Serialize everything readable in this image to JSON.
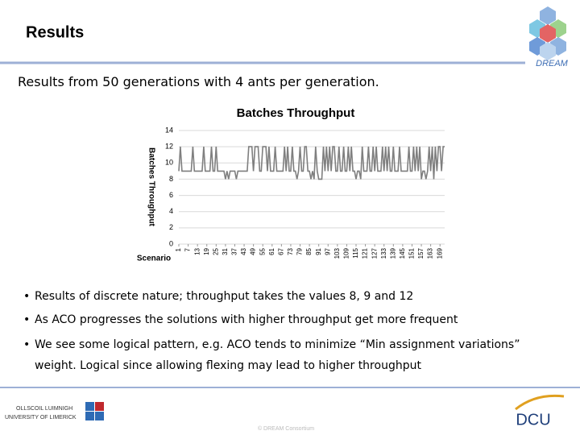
{
  "header": {
    "title": "Results",
    "logo_text": "DREAM"
  },
  "subtitle": "Results from 50 generations with 4 ants per generation.",
  "chart_data": {
    "type": "line",
    "title": "Batches Throughput",
    "x_label": "Scenario",
    "y_label": "Batches Throughput",
    "x": [
      1,
      2,
      3,
      4,
      5,
      6,
      7,
      8,
      9,
      10,
      11,
      12,
      13,
      14,
      15,
      16,
      17,
      18,
      19,
      20,
      21,
      22,
      23,
      24,
      25,
      26,
      27,
      28,
      29,
      30,
      31,
      32,
      33,
      34,
      35,
      36,
      37,
      38,
      39,
      40,
      41,
      42,
      43,
      44,
      45,
      46,
      47,
      48,
      49,
      50,
      51,
      52,
      53,
      54,
      55,
      56,
      57,
      58,
      59,
      60,
      61,
      62,
      63,
      64,
      65,
      66,
      67,
      68,
      69,
      70,
      71,
      72,
      73,
      74,
      75,
      76,
      77,
      78,
      79,
      80,
      81,
      82,
      83,
      84,
      85,
      86,
      87,
      88,
      89,
      90,
      91,
      92,
      93,
      94,
      95,
      96,
      97,
      98,
      99,
      100,
      101,
      102,
      103,
      104,
      105,
      106,
      107,
      108,
      109,
      110,
      111,
      112,
      113,
      114,
      115,
      116,
      117,
      118,
      119,
      120,
      121,
      122,
      123,
      124,
      125,
      126,
      127,
      128,
      129,
      130,
      131,
      132,
      133,
      134,
      135,
      136,
      137,
      138,
      139,
      140,
      141,
      142,
      143,
      144,
      145,
      146,
      147,
      148,
      149,
      150,
      151,
      152,
      153,
      154,
      155,
      156,
      157,
      158,
      159,
      160,
      161,
      162,
      163,
      164,
      165,
      166,
      167,
      168,
      169,
      170,
      171,
      172
    ],
    "series": [
      {
        "name": "Batches Throughput",
        "color": "#7f7f7f",
        "values": [
          9,
          12,
          9,
          9,
          9,
          9,
          9,
          9,
          9,
          12,
          9,
          9,
          9,
          9,
          9,
          9,
          12,
          9,
          9,
          9,
          9,
          12,
          9,
          9,
          12,
          9,
          9,
          9,
          9,
          9,
          8,
          9,
          8,
          9,
          9,
          9,
          9,
          8,
          9,
          9,
          9,
          9,
          9,
          9,
          9,
          12,
          12,
          12,
          9,
          12,
          12,
          12,
          9,
          9,
          12,
          12,
          12,
          9,
          12,
          9,
          9,
          9,
          12,
          9,
          9,
          9,
          9,
          9,
          12,
          9,
          12,
          9,
          9,
          12,
          9,
          9,
          8,
          9,
          12,
          9,
          9,
          12,
          12,
          9,
          9,
          8,
          9,
          8,
          12,
          9,
          8,
          8,
          8,
          12,
          9,
          12,
          9,
          12,
          9,
          12,
          12,
          9,
          9,
          12,
          9,
          9,
          12,
          9,
          9,
          12,
          9,
          12,
          9,
          9,
          8,
          9,
          9,
          8,
          12,
          9,
          9,
          9,
          12,
          9,
          9,
          12,
          9,
          12,
          9,
          9,
          9,
          12,
          9,
          12,
          9,
          12,
          9,
          9,
          12,
          9,
          9,
          9,
          12,
          9,
          9,
          9,
          9,
          9,
          12,
          9,
          9,
          12,
          9,
          12,
          9,
          12,
          8,
          9,
          9,
          8,
          9,
          12,
          9,
          12,
          8,
          12,
          9,
          12,
          12,
          9,
          12,
          12
        ]
      }
    ],
    "xlim": [
      1,
      172
    ],
    "xticks": [
      1,
      7,
      13,
      19,
      25,
      31,
      37,
      43,
      49,
      55,
      61,
      67,
      73,
      79,
      85,
      91,
      97,
      103,
      109,
      115,
      121,
      127,
      133,
      139,
      145,
      151,
      157,
      163,
      169
    ],
    "ylim": [
      0,
      14
    ],
    "yticks": [
      0,
      2,
      4,
      6,
      8,
      10,
      12,
      14
    ],
    "grid": true
  },
  "bullets": [
    "Results of discrete nature; throughput takes the values 8, 9 and 12",
    "As ACO progresses the solutions with higher throughput get more frequent",
    "We see some logical pattern, e.g. ACO tends to minimize “Min assignment variations” weight. Logical since allowing flexing may lead to higher throughput"
  ],
  "footer": {
    "ul_line1": "OLLSCOIL LUIMNIGH",
    "ul_line2": "UNIVERSITY OF LIMERICK",
    "copyright": "© DREAM Consortium",
    "dcu": "DCU"
  }
}
